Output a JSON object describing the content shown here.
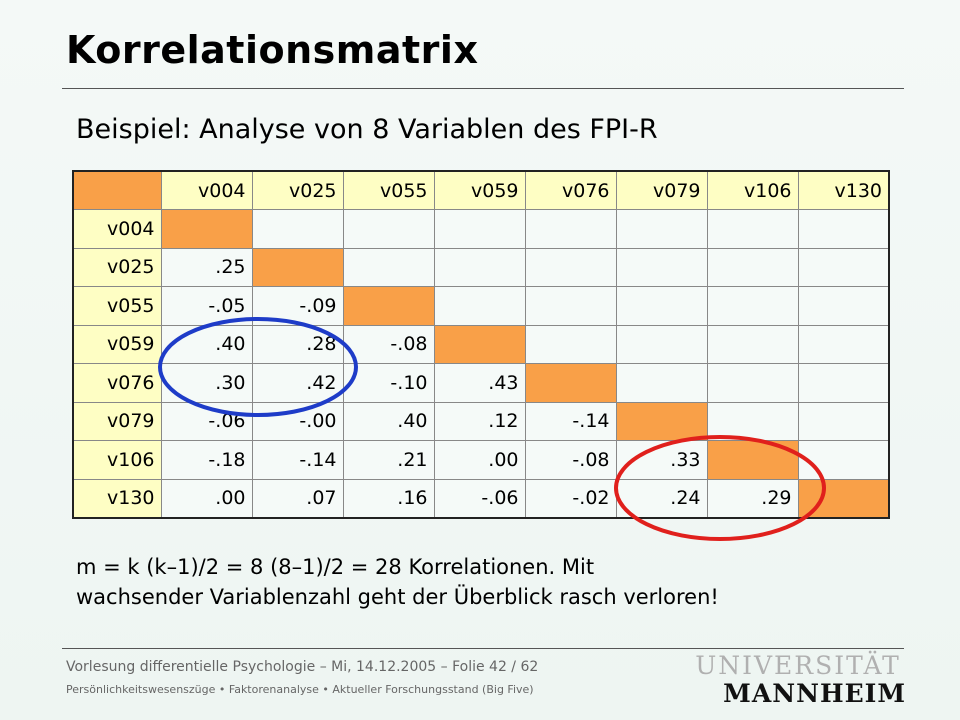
{
  "slide": {
    "title": "Korrelationsmatrix",
    "subtitle": "Beispiel: Analyse von 8 Variablen des FPI-R"
  },
  "matrix": {
    "columns": [
      "v004",
      "v025",
      "v055",
      "v059",
      "v076",
      "v079",
      "v106",
      "v130"
    ],
    "rows": [
      {
        "label": "v004",
        "values": []
      },
      {
        "label": "v025",
        "values": [
          ".25"
        ]
      },
      {
        "label": "v055",
        "values": [
          "-.05",
          "-.09"
        ]
      },
      {
        "label": "v059",
        "values": [
          ".40",
          ".28",
          "-.08"
        ]
      },
      {
        "label": "v076",
        "values": [
          ".30",
          ".42",
          "-.10",
          ".43"
        ]
      },
      {
        "label": "v079",
        "values": [
          "-.06",
          "-.00",
          ".40",
          ".12",
          "-.14"
        ]
      },
      {
        "label": "v106",
        "values": [
          "-.18",
          "-.14",
          ".21",
          ".00",
          "-.08",
          ".33"
        ]
      },
      {
        "label": "v130",
        "values": [
          ".00",
          ".07",
          ".16",
          "-.06",
          "-.02",
          ".24",
          ".29"
        ]
      }
    ],
    "colors": {
      "diagonal": "#f9a048",
      "header": "#fefec4",
      "cell": "#f5faf8",
      "circle_blue": "#1e3cc8",
      "circle_red": "#e0201c"
    }
  },
  "note": {
    "line1": "m = k (k–1)/2 = 8 (8–1)/2 = 28 Korrelationen. Mit",
    "line2": "wachsender Variablenzahl geht der Überblick rasch verloren!"
  },
  "footer": {
    "line1": "Vorlesung differentielle Psychologie – Mi, 14.12.2005 – Folie 42 / 62",
    "line2": "Persönlichkeitswesenszüge • Faktorenanalyse • Aktueller Forschungsstand (Big Five)"
  },
  "logo": {
    "top": "UNIVERSITÄT",
    "bottom": "MANNHEIM"
  }
}
